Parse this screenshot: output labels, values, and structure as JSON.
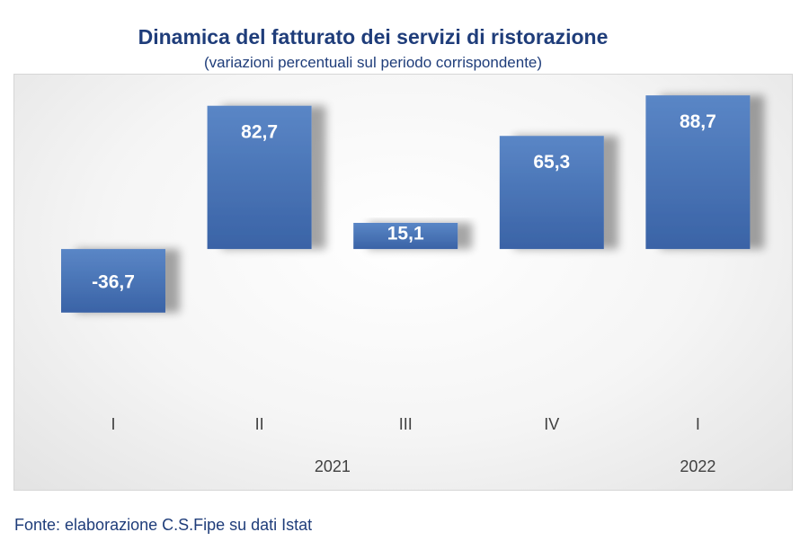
{
  "chart_data": {
    "type": "bar",
    "title": "Dinamica del fatturato dei servizi di ristorazione",
    "subtitle": "(variazioni percentuali sul periodo corrispondente)",
    "categories": [
      "I",
      "II",
      "III",
      "IV",
      "I"
    ],
    "year_labels": [
      {
        "label": "2021",
        "span": [
          0,
          3
        ]
      },
      {
        "label": "2022",
        "span": [
          4,
          4
        ]
      }
    ],
    "values": [
      -36.7,
      82.7,
      15.1,
      65.3,
      88.7
    ],
    "data_labels": [
      "-36,7",
      "82,7",
      "15,1",
      "65,3",
      "88,7"
    ],
    "xlabel": "",
    "ylabel": "",
    "ylim": [
      -70,
      95
    ],
    "grid": false,
    "legend": "none",
    "colors": {
      "bar_top": "#5a86c6",
      "bar_bottom": "#3a63a6",
      "label": "#ffffff",
      "axis_text": "#404040"
    }
  },
  "source": "Fonte: elaborazione C.S.Fipe su dati Istat"
}
